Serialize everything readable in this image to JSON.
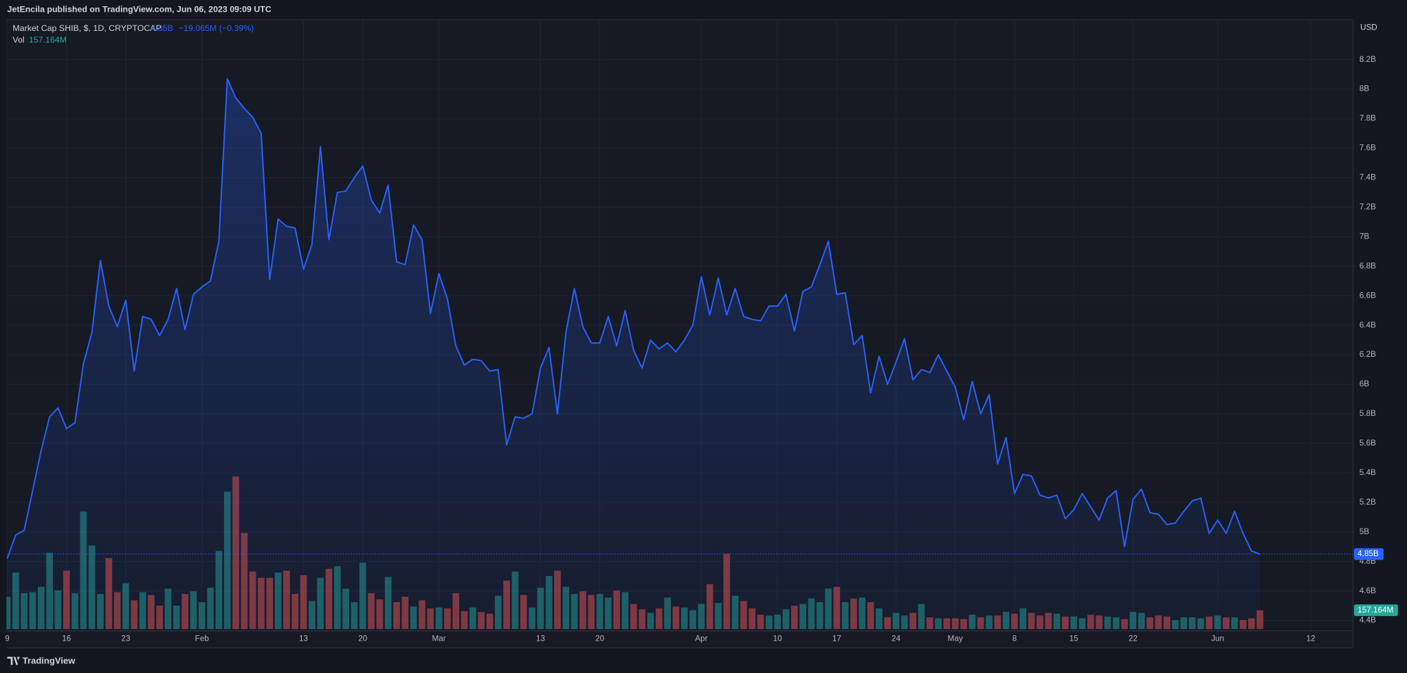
{
  "chart_data": {
    "type": "area",
    "published": "JetEncila published on TradingView.com, Jun 06, 2023 09:09 UTC",
    "title": "Market Cap SHIB, $, 1D, CRYPTOCAP",
    "currency": "USD",
    "brand": "TradingView",
    "color": "#2962ff",
    "last_label": "4.85B",
    "change": "−19.065M (−0.39%)",
    "grid": true,
    "x": [
      "2023-01-09",
      "2023-01-10",
      "2023-01-11",
      "2023-01-12",
      "2023-01-13",
      "2023-01-14",
      "2023-01-15",
      "2023-01-16",
      "2023-01-17",
      "2023-01-18",
      "2023-01-19",
      "2023-01-20",
      "2023-01-21",
      "2023-01-22",
      "2023-01-23",
      "2023-01-24",
      "2023-01-25",
      "2023-01-26",
      "2023-01-27",
      "2023-01-28",
      "2023-01-29",
      "2023-01-30",
      "2023-01-31",
      "2023-02-01",
      "2023-02-02",
      "2023-02-03",
      "2023-02-04",
      "2023-02-05",
      "2023-02-06",
      "2023-02-07",
      "2023-02-08",
      "2023-02-09",
      "2023-02-10",
      "2023-02-11",
      "2023-02-12",
      "2023-02-13",
      "2023-02-14",
      "2023-02-15",
      "2023-02-16",
      "2023-02-17",
      "2023-02-18",
      "2023-02-19",
      "2023-02-20",
      "2023-02-21",
      "2023-02-22",
      "2023-02-23",
      "2023-02-24",
      "2023-02-25",
      "2023-02-26",
      "2023-02-27",
      "2023-02-28",
      "2023-03-01",
      "2023-03-02",
      "2023-03-03",
      "2023-03-04",
      "2023-03-05",
      "2023-03-06",
      "2023-03-07",
      "2023-03-08",
      "2023-03-09",
      "2023-03-10",
      "2023-03-11",
      "2023-03-12",
      "2023-03-13",
      "2023-03-14",
      "2023-03-15",
      "2023-03-16",
      "2023-03-17",
      "2023-03-18",
      "2023-03-19",
      "2023-03-20",
      "2023-03-21",
      "2023-03-22",
      "2023-03-23",
      "2023-03-24",
      "2023-03-25",
      "2023-03-26",
      "2023-03-27",
      "2023-03-28",
      "2023-03-29",
      "2023-03-30",
      "2023-03-31",
      "2023-04-01",
      "2023-04-02",
      "2023-04-03",
      "2023-04-04",
      "2023-04-05",
      "2023-04-06",
      "2023-04-07",
      "2023-04-08",
      "2023-04-09",
      "2023-04-10",
      "2023-04-11",
      "2023-04-12",
      "2023-04-13",
      "2023-04-14",
      "2023-04-15",
      "2023-04-16",
      "2023-04-17",
      "2023-04-18",
      "2023-04-19",
      "2023-04-20",
      "2023-04-21",
      "2023-04-22",
      "2023-04-23",
      "2023-04-24",
      "2023-04-25",
      "2023-04-26",
      "2023-04-27",
      "2023-04-28",
      "2023-04-29",
      "2023-04-30",
      "2023-05-01",
      "2023-05-02",
      "2023-05-03",
      "2023-05-04",
      "2023-05-05",
      "2023-05-06",
      "2023-05-07",
      "2023-05-08",
      "2023-05-09",
      "2023-05-10",
      "2023-05-11",
      "2023-05-12",
      "2023-05-13",
      "2023-05-14",
      "2023-05-15",
      "2023-05-16",
      "2023-05-17",
      "2023-05-18",
      "2023-05-19",
      "2023-05-20",
      "2023-05-21",
      "2023-05-22",
      "2023-05-23",
      "2023-05-24",
      "2023-05-25",
      "2023-05-26",
      "2023-05-27",
      "2023-05-28",
      "2023-05-29",
      "2023-05-30",
      "2023-05-31",
      "2023-06-01",
      "2023-06-02",
      "2023-06-03",
      "2023-06-04",
      "2023-06-05",
      "2023-06-06"
    ],
    "values": [
      4.82,
      4.98,
      5.01,
      5.28,
      5.55,
      5.78,
      5.84,
      5.7,
      5.74,
      6.14,
      6.35,
      6.84,
      6.53,
      6.39,
      6.57,
      6.09,
      6.46,
      6.44,
      6.33,
      6.44,
      6.65,
      6.37,
      6.61,
      6.66,
      6.7,
      6.97,
      8.07,
      7.94,
      7.87,
      7.81,
      7.7,
      6.71,
      7.12,
      7.07,
      7.06,
      6.78,
      6.95,
      7.61,
      6.98,
      7.3,
      7.31,
      7.4,
      7.48,
      7.25,
      7.16,
      7.35,
      6.83,
      6.81,
      7.08,
      6.98,
      6.48,
      6.75,
      6.58,
      6.26,
      6.13,
      6.17,
      6.16,
      6.09,
      6.1,
      5.59,
      5.78,
      5.77,
      5.8,
      6.11,
      6.25,
      5.8,
      6.35,
      6.65,
      6.39,
      6.28,
      6.28,
      6.46,
      6.26,
      6.5,
      6.23,
      6.11,
      6.3,
      6.24,
      6.28,
      6.22,
      6.3,
      6.4,
      6.73,
      6.47,
      6.72,
      6.47,
      6.65,
      6.46,
      6.44,
      6.43,
      6.53,
      6.53,
      6.61,
      6.36,
      6.63,
      6.66,
      6.81,
      6.97,
      6.61,
      6.62,
      6.27,
      6.33,
      5.94,
      6.19,
      6.0,
      6.15,
      6.31,
      6.03,
      6.1,
      6.08,
      6.2,
      6.09,
      5.98,
      5.76,
      6.02,
      5.8,
      5.93,
      5.46,
      5.64,
      5.26,
      5.39,
      5.38,
      5.25,
      5.23,
      5.25,
      5.09,
      5.15,
      5.26,
      5.17,
      5.08,
      5.23,
      5.28,
      4.9,
      5.22,
      5.29,
      5.13,
      5.12,
      5.05,
      5.06,
      5.14,
      5.21,
      5.23,
      4.99,
      5.08,
      4.99,
      5.14,
      4.99,
      4.87,
      4.85
    ],
    "volume": {
      "name": "Vol",
      "last_label": "157.164M",
      "up_color": "#26a69a",
      "down_color": "#ef5350",
      "values": [
        270,
        473,
        300,
        308,
        353,
        638,
        323,
        488,
        300,
        983,
        698,
        293,
        593,
        308,
        383,
        240,
        308,
        285,
        195,
        338,
        195,
        293,
        315,
        225,
        345,
        653,
        1148,
        1275,
        803,
        480,
        428,
        428,
        473,
        488,
        293,
        450,
        233,
        428,
        503,
        525,
        338,
        225,
        555,
        300,
        248,
        435,
        225,
        270,
        188,
        240,
        173,
        180,
        173,
        300,
        150,
        180,
        143,
        128,
        278,
        405,
        480,
        285,
        180,
        345,
        443,
        488,
        353,
        293,
        315,
        285,
        293,
        263,
        323,
        308,
        210,
        165,
        135,
        173,
        263,
        188,
        180,
        158,
        210,
        375,
        218,
        630,
        278,
        233,
        173,
        120,
        113,
        120,
        165,
        195,
        210,
        255,
        225,
        338,
        353,
        225,
        255,
        263,
        225,
        173,
        98,
        135,
        113,
        135,
        210,
        98,
        90,
        90,
        90,
        83,
        120,
        98,
        113,
        113,
        143,
        128,
        173,
        135,
        113,
        135,
        128,
        105,
        105,
        90,
        120,
        113,
        105,
        98,
        83,
        143,
        135,
        98,
        113,
        105,
        75,
        98,
        98,
        90,
        105,
        113,
        98,
        98,
        75,
        90,
        157.164
      ]
    },
    "xlim": [
      "2023-01-09",
      "2023-06-17"
    ],
    "xticks": [
      {
        "value": "2023-01-09",
        "label": "9"
      },
      {
        "value": "2023-01-16",
        "label": "16"
      },
      {
        "value": "2023-01-23",
        "label": "23"
      },
      {
        "value": "2023-02-01",
        "label": "Feb"
      },
      {
        "value": "2023-02-13",
        "label": "13"
      },
      {
        "value": "2023-02-20",
        "label": "20"
      },
      {
        "value": "2023-03-01",
        "label": "Mar"
      },
      {
        "value": "2023-03-13",
        "label": "13"
      },
      {
        "value": "2023-03-20",
        "label": "20"
      },
      {
        "value": "2023-04-01",
        "label": "Apr"
      },
      {
        "value": "2023-04-10",
        "label": "10"
      },
      {
        "value": "2023-04-17",
        "label": "17"
      },
      {
        "value": "2023-04-24",
        "label": "24"
      },
      {
        "value": "2023-05-01",
        "label": "May"
      },
      {
        "value": "2023-05-08",
        "label": "8"
      },
      {
        "value": "2023-05-15",
        "label": "15"
      },
      {
        "value": "2023-05-22",
        "label": "22"
      },
      {
        "value": "2023-06-01",
        "label": "Jun"
      },
      {
        "value": "2023-06-12",
        "label": "12"
      }
    ],
    "ylim": [
      4.33,
      8.47
    ],
    "yticks": [
      {
        "value": 4.4,
        "label": "4.4B"
      },
      {
        "value": 4.6,
        "label": "4.6B"
      },
      {
        "value": 4.8,
        "label": "4.8B"
      },
      {
        "value": 5,
        "label": "5B"
      },
      {
        "value": 5.2,
        "label": "5.2B"
      },
      {
        "value": 5.4,
        "label": "5.4B"
      },
      {
        "value": 5.6,
        "label": "5.6B"
      },
      {
        "value": 5.8,
        "label": "5.8B"
      },
      {
        "value": 6,
        "label": "6B"
      },
      {
        "value": 6.2,
        "label": "6.2B"
      },
      {
        "value": 6.4,
        "label": "6.4B"
      },
      {
        "value": 6.6,
        "label": "6.6B"
      },
      {
        "value": 6.8,
        "label": "6.8B"
      },
      {
        "value": 7,
        "label": "7B"
      },
      {
        "value": 7.2,
        "label": "7.2B"
      },
      {
        "value": 7.4,
        "label": "7.4B"
      },
      {
        "value": 7.6,
        "label": "7.6B"
      },
      {
        "value": 7.8,
        "label": "7.8B"
      },
      {
        "value": 8,
        "label": "8B"
      },
      {
        "value": 8.2,
        "label": "8.2B"
      }
    ]
  }
}
